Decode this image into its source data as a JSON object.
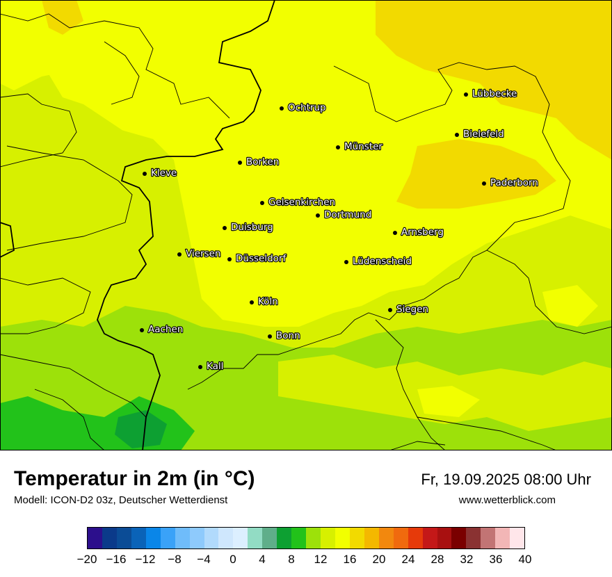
{
  "title": "Temperatur in 2m (in °C)",
  "model": "Modell: ICON-D2 03z, Deutscher Wetterdienst",
  "datetime": "Fr, 19.09.2025 08:00 Uhr",
  "website": "www.wetterblick.com",
  "cities": [
    {
      "name": "Ochtrup"
    },
    {
      "name": "Lübbecke"
    },
    {
      "name": "Bielefeld"
    },
    {
      "name": "Münster"
    },
    {
      "name": "Borken"
    },
    {
      "name": "Kleve"
    },
    {
      "name": "Paderborn"
    },
    {
      "name": "Gelsenkirchen"
    },
    {
      "name": "Dortmund"
    },
    {
      "name": "Duisburg"
    },
    {
      "name": "Arnsberg"
    },
    {
      "name": "Viersen"
    },
    {
      "name": "Düsseldorf"
    },
    {
      "name": "Lüdenscheid"
    },
    {
      "name": "Köln"
    },
    {
      "name": "Siegen"
    },
    {
      "name": "Aachen"
    },
    {
      "name": "Bonn"
    },
    {
      "name": "Kall"
    }
  ],
  "legend": {
    "colors": [
      "#2c0f8c",
      "#0b3a8a",
      "#0b4c96",
      "#0a63b8",
      "#0a86e8",
      "#3aa2f8",
      "#6fbcfa",
      "#8ecafc",
      "#b1dafc",
      "#cfe7fd",
      "#dcefff",
      "#92dcc4",
      "#5fae8a",
      "#0da032",
      "#22c21a",
      "#9de10a",
      "#d7f000",
      "#f2ff00",
      "#f2da00",
      "#f4b800",
      "#f2880e",
      "#f06a0e",
      "#e63a0a",
      "#c41818",
      "#a81010",
      "#7a0000",
      "#8a3232",
      "#c27474",
      "#f2b6b6",
      "#ffe6ea"
    ],
    "ticks": [
      "−20",
      "−16",
      "−12",
      "−8",
      "−4",
      "0",
      "4",
      "8",
      "12",
      "16",
      "20",
      "24",
      "28",
      "32",
      "36",
      "40"
    ]
  },
  "colors": {
    "temp_16": "#f2ff00",
    "temp_18": "#f2da00",
    "temp_14": "#d7f000",
    "temp_12": "#9de10a",
    "temp_10": "#22c21a",
    "temp_8": "#0da032"
  }
}
